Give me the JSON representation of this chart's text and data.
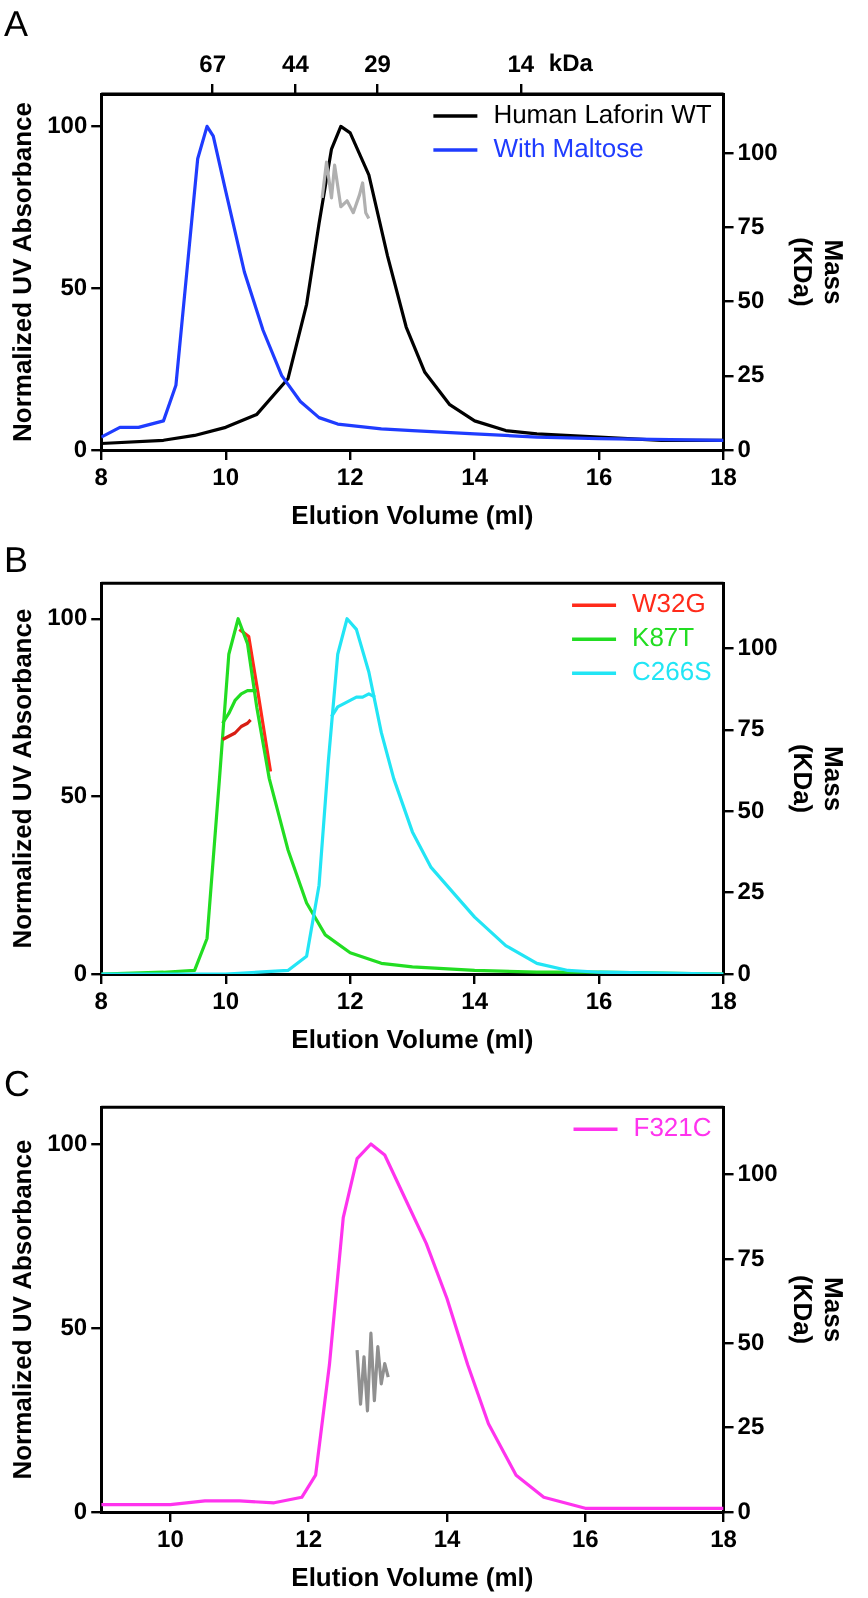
{
  "chart_data": [
    {
      "type": "line",
      "title": "A",
      "xlabel": "Elution Volume (ml)",
      "ylabel": "Normalized UV Absorbance",
      "y2label": "Mass (KDa)",
      "x2label": "kDa",
      "legend": "top right",
      "xlim": [
        8,
        18
      ],
      "xticks": [
        8,
        10,
        12,
        14,
        16,
        18
      ],
      "ylim": [
        0,
        110
      ],
      "yticks": [
        0,
        50,
        100
      ],
      "y2lim": [
        0,
        120
      ],
      "y2ticks": [
        0,
        25,
        50,
        75,
        100
      ],
      "log": "x2",
      "x2lim": [
        118,
        5
      ],
      "x2ticks": [
        67,
        44,
        29,
        14
      ],
      "series": [
        {
          "name": "Human Laforin WT",
          "color": "#000000",
          "x": [
            8,
            9,
            9.5,
            10,
            10.5,
            11,
            11.3,
            11.5,
            11.7,
            11.85,
            12,
            12.3,
            12.6,
            12.9,
            13.2,
            13.6,
            14,
            14.5,
            15,
            16,
            17,
            18
          ],
          "values": [
            2,
            3,
            4.5,
            7,
            11,
            22,
            45,
            70,
            93,
            100,
            98,
            85,
            60,
            38,
            24,
            14,
            9,
            6,
            5,
            4,
            3,
            3
          ]
        },
        {
          "name": "With Maltose",
          "color": "#1f3cff",
          "x": [
            8,
            8.3,
            8.6,
            9,
            9.2,
            9.4,
            9.55,
            9.7,
            9.8,
            10,
            10.3,
            10.6,
            10.9,
            11.2,
            11.5,
            11.8,
            12.5,
            13,
            14,
            15,
            16,
            18
          ],
          "values": [
            4,
            7,
            7,
            9,
            20,
            60,
            90,
            100,
            97,
            80,
            55,
            37,
            23,
            15,
            10,
            8,
            6.5,
            6,
            5,
            4,
            3.5,
            3
          ]
        },
        {
          "color": "#b0b0b0",
          "axis": "y2",
          "x": [
            11.55,
            11.62,
            11.7,
            11.75,
            11.85,
            11.95,
            12.05,
            12.15,
            12.2,
            12.25,
            12.3
          ],
          "values": [
            85,
            97,
            85,
            96,
            82,
            84,
            80,
            86,
            90,
            80,
            78
          ]
        }
      ]
    },
    {
      "type": "line",
      "title": "B",
      "xlabel": "Elution Volume (ml)",
      "ylabel": "Normalized UV Absorbance",
      "y2label": "Mass (KDa)",
      "legend": "top right",
      "xlim": [
        8,
        18
      ],
      "xticks": [
        8,
        10,
        12,
        14,
        16,
        18
      ],
      "ylim": [
        0,
        110
      ],
      "yticks": [
        0,
        50,
        100
      ],
      "y2lim": [
        0,
        120
      ],
      "y2ticks": [
        0,
        25,
        50,
        75,
        100
      ],
      "series": [
        {
          "name": "W32G",
          "color": "#ff2a1a",
          "x": [
            10.22,
            10.37,
            10.52,
            10.72
          ],
          "values": [
            97,
            95,
            79,
            57
          ]
        },
        {
          "name": "K87T",
          "color": "#22dd22",
          "x": [
            8,
            9,
            9.5,
            9.7,
            9.9,
            10.05,
            10.2,
            10.35,
            10.5,
            10.7,
            11,
            11.3,
            11.6,
            12,
            12.5,
            13,
            13.5,
            14,
            15,
            16,
            18
          ],
          "values": [
            0,
            0.5,
            1,
            10,
            55,
            90,
            100,
            93,
            75,
            55,
            35,
            20,
            11,
            6,
            3,
            2,
            1.5,
            1,
            0.5,
            0.5,
            0
          ]
        },
        {
          "name": "C266S",
          "color": "#22e5f5",
          "x": [
            8,
            10,
            11,
            11.3,
            11.5,
            11.65,
            11.8,
            11.95,
            12.1,
            12.3,
            12.5,
            12.7,
            13,
            13.3,
            13.7,
            14,
            14.5,
            15,
            15.5,
            16,
            18
          ],
          "values": [
            0,
            0,
            1,
            5,
            25,
            60,
            90,
            100,
            97,
            85,
            68,
            55,
            40,
            30,
            22,
            16,
            8,
            3,
            1,
            0.5,
            0
          ]
        },
        {
          "color": "#22dd22",
          "axis": "y2",
          "x": [
            9.95,
            10.05,
            10.15,
            10.25,
            10.35,
            10.45,
            10.5
          ],
          "values": [
            77,
            80,
            84,
            86,
            87,
            87,
            87
          ]
        },
        {
          "color": "#d81e14",
          "axis": "y2",
          "x": [
            9.95,
            10.05,
            10.15,
            10.25,
            10.35,
            10.4
          ],
          "values": [
            72,
            73,
            74,
            76,
            77,
            78
          ]
        },
        {
          "color": "#22e5f5",
          "axis": "y2",
          "x": [
            11.7,
            11.8,
            11.9,
            12,
            12.1,
            12.2,
            12.3,
            12.4
          ],
          "values": [
            79,
            82,
            83,
            84,
            85,
            85,
            86,
            85
          ]
        }
      ]
    },
    {
      "type": "line",
      "title": "C",
      "xlabel": "Elution Volume (ml)",
      "ylabel": "Normalized UV Absorbance",
      "y2label": "Mass (KDa)",
      "legend": "top right",
      "xlim": [
        9,
        18
      ],
      "xticks": [
        10,
        12,
        14,
        16,
        18
      ],
      "ylim": [
        0,
        110
      ],
      "yticks": [
        0,
        50,
        100
      ],
      "y2lim": [
        0,
        120
      ],
      "y2ticks": [
        0,
        25,
        50,
        75,
        100
      ],
      "series": [
        {
          "name": "F321C",
          "color": "#ff33ee",
          "x": [
            9,
            10,
            10.5,
            11,
            11.5,
            11.9,
            12.1,
            12.3,
            12.5,
            12.7,
            12.9,
            13.1,
            13.4,
            13.7,
            14,
            14.3,
            14.6,
            15,
            15.4,
            16,
            18
          ],
          "values": [
            2,
            2,
            3,
            3,
            2.5,
            4,
            10,
            40,
            80,
            96,
            100,
            97,
            85,
            73,
            58,
            40,
            24,
            10,
            4,
            1,
            1
          ]
        },
        {
          "color": "#909090",
          "axis": "y2",
          "x": [
            12.7,
            12.75,
            12.8,
            12.85,
            12.9,
            12.95,
            13,
            13.05,
            13.1,
            13.15
          ],
          "values": [
            48,
            32,
            46,
            30,
            53,
            33,
            49,
            38,
            44,
            40
          ]
        }
      ]
    }
  ]
}
